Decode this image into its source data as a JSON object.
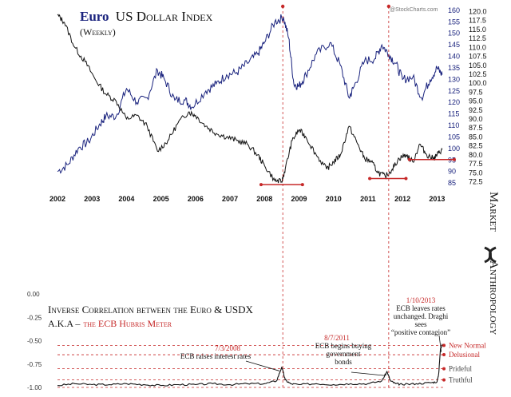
{
  "chart_data": {
    "type": "line",
    "title_prefix": "Euro",
    "title_rest": "US Dollar Index",
    "subtitle": "(Weekly)",
    "watermark": "@StockCharts.com",
    "brand_left": "Market",
    "brand_right": "Anthropology",
    "x_ticks": [
      "2002",
      "2003",
      "2004",
      "2005",
      "2006",
      "2007",
      "2008",
      "2009",
      "2010",
      "2011",
      "2012",
      "2013"
    ],
    "x_range": [
      2002.0,
      2013.2
    ],
    "euro_axis": {
      "ticks": [
        85,
        90,
        95,
        100,
        105,
        110,
        115,
        120,
        125,
        130,
        135,
        140,
        145,
        150,
        155,
        160
      ],
      "range": [
        84,
        161
      ],
      "color": "#1a237e"
    },
    "usd_axis": {
      "ticks": [
        72.5,
        75.0,
        77.5,
        80.0,
        82.5,
        85.0,
        87.5,
        90.0,
        92.5,
        95.0,
        97.5,
        100.0,
        102.5,
        105.0,
        107.5,
        110.0,
        112.5,
        115.0,
        117.5,
        120.0
      ],
      "range": [
        71.5,
        121
      ]
    },
    "euro_series": {
      "color": "#1a237e",
      "x": [
        2002.0,
        2002.3,
        2002.6,
        2002.9,
        2003.2,
        2003.4,
        2003.7,
        2004.0,
        2004.3,
        2004.6,
        2004.9,
        2005.1,
        2005.4,
        2005.7,
        2005.9,
        2006.3,
        2006.6,
        2006.9,
        2007.2,
        2007.5,
        2007.8,
        2008.0,
        2008.3,
        2008.55,
        2008.7,
        2008.85,
        2009.0,
        2009.2,
        2009.5,
        2009.9,
        2010.2,
        2010.45,
        2010.6,
        2010.9,
        2011.2,
        2011.4,
        2011.6,
        2011.8,
        2012.0,
        2012.3,
        2012.55,
        2012.8,
        2013.0,
        2013.15
      ],
      "y": [
        90,
        93,
        100,
        103,
        110,
        114,
        114,
        126,
        120,
        122,
        134,
        130,
        121,
        121,
        118,
        125,
        128,
        132,
        133,
        137,
        141,
        146,
        155,
        157,
        148,
        128,
        127,
        132,
        141,
        146,
        136,
        122,
        127,
        138,
        139,
        145,
        141,
        137,
        130,
        131,
        122,
        130,
        135,
        132
      ]
    },
    "usd_series": {
      "x": [
        2002.0,
        2002.2,
        2002.5,
        2002.8,
        2003.1,
        2003.4,
        2003.7,
        2004.0,
        2004.3,
        2004.6,
        2004.9,
        2005.2,
        2005.5,
        2005.8,
        2006.0,
        2006.3,
        2006.6,
        2006.9,
        2007.2,
        2007.5,
        2007.8,
        2008.0,
        2008.3,
        2008.5,
        2008.6,
        2008.8,
        2009.0,
        2009.2,
        2009.5,
        2009.8,
        2010.0,
        2010.2,
        2010.45,
        2010.7,
        2010.9,
        2011.1,
        2011.3,
        2011.5,
        2011.7,
        2011.9,
        2012.1,
        2012.3,
        2012.5,
        2012.7,
        2012.9,
        2013.0,
        2013.15
      ],
      "y": [
        119,
        117,
        110,
        106,
        101,
        97,
        95,
        90,
        91,
        88,
        81,
        84,
        89,
        92,
        91,
        88,
        86,
        85,
        84,
        83,
        80,
        77,
        72.8,
        72.5,
        76,
        84,
        87,
        85,
        80,
        76,
        78,
        80,
        88,
        83,
        79,
        78,
        75,
        74,
        76,
        79,
        80,
        78,
        83,
        80,
        79,
        80,
        81.5
      ]
    },
    "support_lines": [
      {
        "x1": 2007.9,
        "x2": 2009.1,
        "y": 72.8
      },
      {
        "x1": 2011.05,
        "x2": 2012.1,
        "y": 74.5
      },
      {
        "x1": 2012.2,
        "x2": 2013.5,
        "y": 79.8
      }
    ],
    "event_lines": [
      2008.53,
      2011.6
    ],
    "lower": {
      "title": "Inverse Correlation between the Euro & USDX",
      "subtitle_prefix": "A.K.A –",
      "subtitle_highlight": "the ECB Hubris Meter",
      "y_ticks": [
        "0.00",
        "-0.25",
        "-0.50",
        "-0.75",
        "-1.00"
      ],
      "y_range": [
        -1.0,
        0.0
      ],
      "levels": [
        {
          "label": "New Normal",
          "value": -0.55,
          "color": "#c62828"
        },
        {
          "label": "Delusional",
          "value": -0.65,
          "color": "#c62828"
        },
        {
          "label": "Prideful",
          "value": -0.8,
          "color": "#444444"
        },
        {
          "label": "Truthful",
          "value": -0.92,
          "color": "#444444"
        }
      ],
      "series": {
        "x": [
          2002.0,
          2002.5,
          2003.0,
          2003.5,
          2004.0,
          2004.5,
          2005.0,
          2005.5,
          2006.0,
          2006.5,
          2007.0,
          2007.5,
          2008.0,
          2008.35,
          2008.5,
          2008.6,
          2008.75,
          2009.0,
          2009.5,
          2010.0,
          2010.5,
          2011.0,
          2011.4,
          2011.55,
          2011.65,
          2011.8,
          2012.0,
          2012.4,
          2012.8,
          2013.0,
          2013.05,
          2013.1,
          2013.15
        ],
        "y": [
          -0.98,
          -0.96,
          -0.97,
          -0.97,
          -0.96,
          -0.97,
          -0.98,
          -0.97,
          -0.97,
          -0.96,
          -0.97,
          -0.96,
          -0.96,
          -0.93,
          -0.78,
          -0.92,
          -0.96,
          -0.97,
          -0.96,
          -0.97,
          -0.96,
          -0.96,
          -0.93,
          -0.83,
          -0.93,
          -0.96,
          -0.97,
          -0.96,
          -0.95,
          -0.94,
          -0.85,
          -0.58,
          -0.55
        ]
      },
      "annotations": [
        {
          "date": "7/3/2008",
          "text": "ECB raises interest rates",
          "x": 2008.53,
          "y": -0.79
        },
        {
          "date": "8/7/2011",
          "text_lines": [
            "ECB begins buying",
            "government",
            "bonds"
          ],
          "x": 2011.6,
          "y": -0.84
        },
        {
          "date": "1/10/2013",
          "text_lines": [
            "ECB leaves rates",
            "unchanged. Draghi",
            "sees",
            "“positive contagion”"
          ],
          "x": 2013.1,
          "y": -0.57
        }
      ]
    }
  }
}
